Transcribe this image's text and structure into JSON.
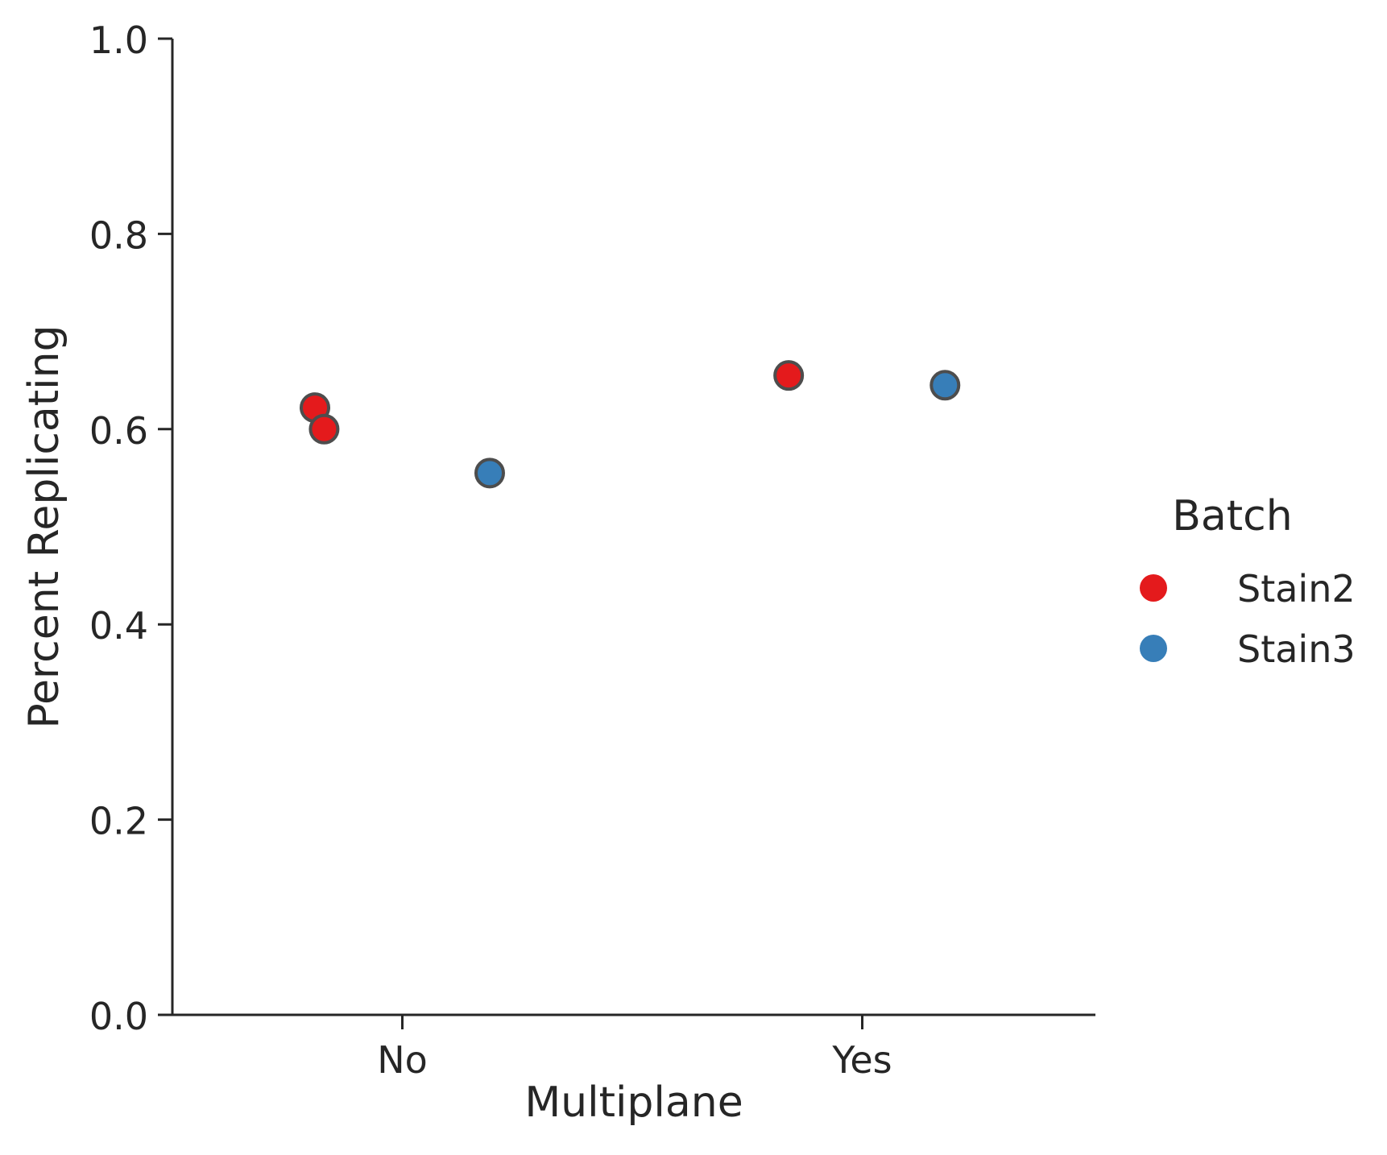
{
  "chart_data": {
    "type": "scatter",
    "xlabel": "Multiplane",
    "ylabel": "Percent Replicating",
    "categories": [
      "No",
      "Yes"
    ],
    "ylim": [
      0.0,
      1.0
    ],
    "yticks": [
      "0.0",
      "0.2",
      "0.4",
      "0.6",
      "0.8",
      "1.0"
    ],
    "grid": false,
    "legend": {
      "title": "Batch",
      "placement": "right"
    },
    "series": [
      {
        "name": "Stain2",
        "color": "#e41a1c",
        "points": [
          {
            "category": "No",
            "offset": -0.19,
            "value": 0.622
          },
          {
            "category": "No",
            "offset": -0.17,
            "value": 0.6
          },
          {
            "category": "Yes",
            "offset": -0.16,
            "value": 0.655
          }
        ]
      },
      {
        "name": "Stain3",
        "color": "#377eb8",
        "points": [
          {
            "category": "No",
            "offset": 0.19,
            "value": 0.555
          },
          {
            "category": "Yes",
            "offset": 0.18,
            "value": 0.645
          }
        ]
      }
    ]
  }
}
